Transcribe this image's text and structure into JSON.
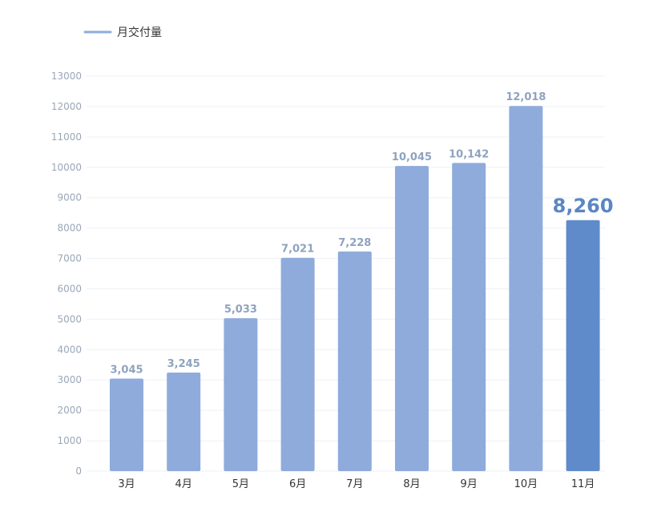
{
  "chart_data": {
    "type": "bar",
    "categories": [
      "3月",
      "4月",
      "5月",
      "6月",
      "7月",
      "8月",
      "9月",
      "10月",
      "11月"
    ],
    "series": [
      {
        "name": "月交付量",
        "values": [
          3045,
          3245,
          5033,
          7021,
          7228,
          10045,
          10142,
          12018,
          8260
        ],
        "value_labels": [
          "3,045",
          "3,245",
          "5,033",
          "7,021",
          "7,228",
          "10,045",
          "10,142",
          "12,018",
          "8,260"
        ]
      }
    ],
    "ylim": [
      0,
      13000
    ],
    "yticks": [
      0,
      1000,
      2000,
      3000,
      4000,
      5000,
      6000,
      7000,
      8000,
      9000,
      10000,
      11000,
      12000,
      13000
    ],
    "grid": true,
    "legend_position": "top-left",
    "highlight_index": 8,
    "colors": {
      "bar": "#8eabdb",
      "bar_highlight": "#5f8bcb",
      "legend_line": "#8eabdb",
      "grid": "#eef1f5"
    }
  }
}
